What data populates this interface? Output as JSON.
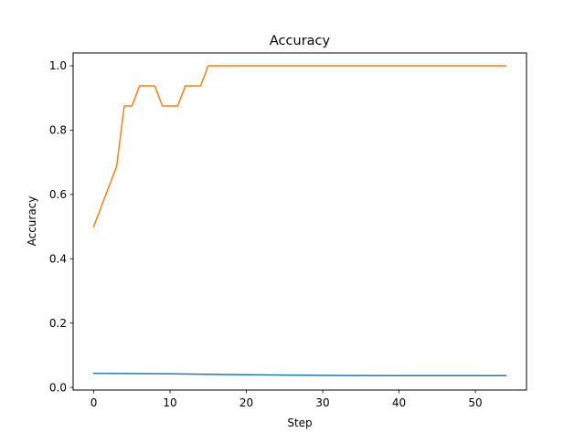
{
  "chart_data": {
    "type": "line",
    "title": "Accuracy",
    "xlabel": "Step",
    "ylabel": "Accuracy",
    "xlim": [
      -2.7,
      56.7
    ],
    "ylim": [
      -0.0083,
      1.0399
    ],
    "grid": false,
    "x_ticks": [
      0,
      10,
      20,
      30,
      40,
      50
    ],
    "y_ticks": [
      0.0,
      0.2,
      0.4,
      0.6,
      0.8,
      1.0
    ],
    "x_tick_labels": [
      "0",
      "10",
      "20",
      "30",
      "40",
      "50"
    ],
    "y_tick_labels": [
      "0.0",
      "0.2",
      "0.4",
      "0.6",
      "0.8",
      "1.0"
    ],
    "series": [
      {
        "color": "#1f77b4",
        "x": [
          0,
          10,
          20,
          30,
          40,
          54
        ],
        "y": [
          0.0437,
          0.0423,
          0.0392,
          0.0372,
          0.0364,
          0.0363
        ]
      },
      {
        "color": "#ff7f0e",
        "x": [
          0,
          3,
          4,
          5,
          6,
          7,
          8,
          9,
          10,
          11,
          12,
          13,
          14,
          15,
          54
        ],
        "y": [
          0.5,
          0.6875,
          0.875,
          0.875,
          0.9375,
          0.9375,
          0.9375,
          0.875,
          0.875,
          0.875,
          0.9375,
          0.9375,
          0.9375,
          1.0,
          1.0
        ]
      }
    ]
  }
}
